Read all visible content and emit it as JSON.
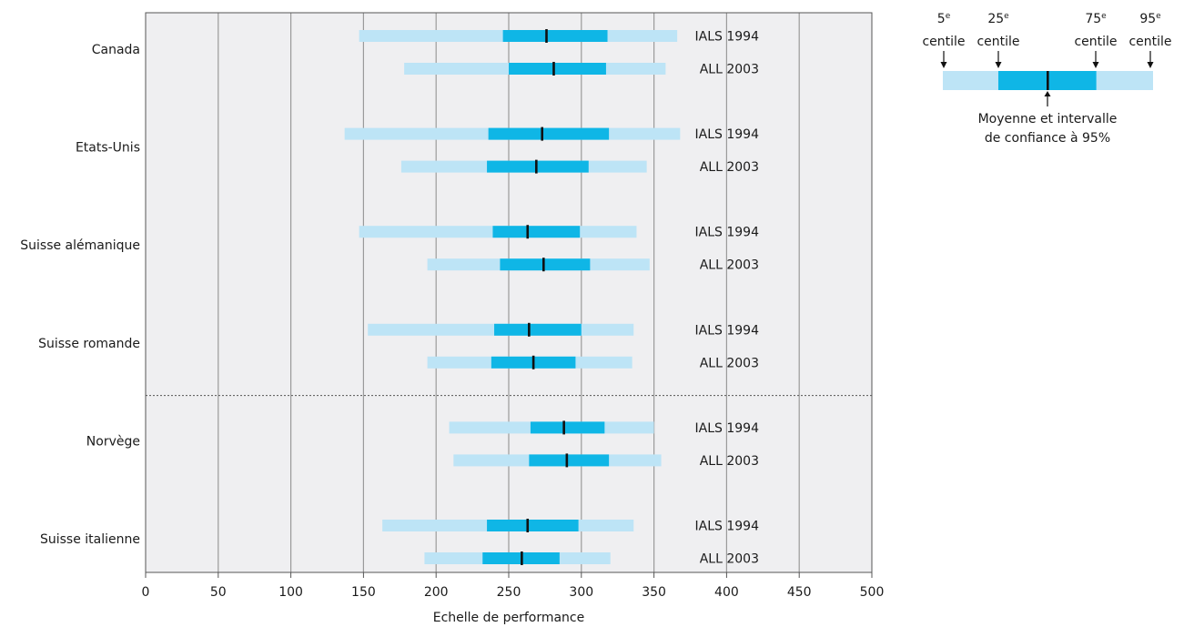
{
  "chart_data": {
    "type": "box-range",
    "xlabel": "Echelle de performance",
    "xlim": [
      0,
      500
    ],
    "xticks": [
      0,
      50,
      100,
      150,
      200,
      250,
      300,
      350,
      400,
      450,
      500
    ],
    "grid": true,
    "series_labels": [
      "IALS 1994",
      "ALL 2003"
    ],
    "categories": [
      {
        "name": "Canada",
        "rows": [
          {
            "label": "IALS 1994",
            "p5": 147,
            "p25": 246,
            "mean": 276,
            "p75": 318,
            "p95": 366
          },
          {
            "label": "ALL 2003",
            "p5": 178,
            "p25": 250,
            "mean": 281,
            "p75": 317,
            "p95": 358
          }
        ]
      },
      {
        "name": "Etats-Unis",
        "rows": [
          {
            "label": "IALS 1994",
            "p5": 137,
            "p25": 236,
            "mean": 273,
            "p75": 319,
            "p95": 368
          },
          {
            "label": "ALL 2003",
            "p5": 176,
            "p25": 235,
            "mean": 269,
            "p75": 305,
            "p95": 345
          }
        ]
      },
      {
        "name": "Suisse alémanique",
        "rows": [
          {
            "label": "IALS 1994",
            "p5": 147,
            "p25": 239,
            "mean": 263,
            "p75": 299,
            "p95": 338
          },
          {
            "label": "ALL 2003",
            "p5": 194,
            "p25": 244,
            "mean": 274,
            "p75": 306,
            "p95": 347
          }
        ]
      },
      {
        "name": "Suisse romande",
        "rows": [
          {
            "label": "IALS 1994",
            "p5": 153,
            "p25": 240,
            "mean": 264,
            "p75": 300,
            "p95": 336
          },
          {
            "label": "ALL 2003",
            "p5": 194,
            "p25": 238,
            "mean": 267,
            "p75": 296,
            "p95": 335
          }
        ]
      },
      {
        "name": "Norvège",
        "rows": [
          {
            "label": "IALS 1994",
            "p5": 209,
            "p25": 265,
            "mean": 288,
            "p75": 316,
            "p95": 350
          },
          {
            "label": "ALL 2003",
            "p5": 212,
            "p25": 264,
            "mean": 290,
            "p75": 319,
            "p95": 355
          }
        ]
      },
      {
        "name": "Suisse italienne",
        "rows": [
          {
            "label": "IALS 1994",
            "p5": 163,
            "p25": 235,
            "mean": 263,
            "p75": 298,
            "p95": 336
          },
          {
            "label": "ALL 2003",
            "p5": 192,
            "p25": 232,
            "mean": 259,
            "p75": 285,
            "p95": 320
          }
        ]
      }
    ],
    "separator_after_category": 3,
    "colors": {
      "outer": "#bde4f6",
      "inner": "#0fb6e6",
      "mean": "#111111",
      "plot_bg": "#efeff1",
      "grid": "#9a9a9a",
      "separator": "#555555"
    },
    "legend": {
      "p5_num": "5",
      "p25_num": "25",
      "p75_num": "75",
      "p95_num": "95",
      "sup": "e",
      "centile": "centile",
      "mean_line1": "Moyenne et intervalle",
      "mean_line2": "de confiance à 95%"
    }
  }
}
